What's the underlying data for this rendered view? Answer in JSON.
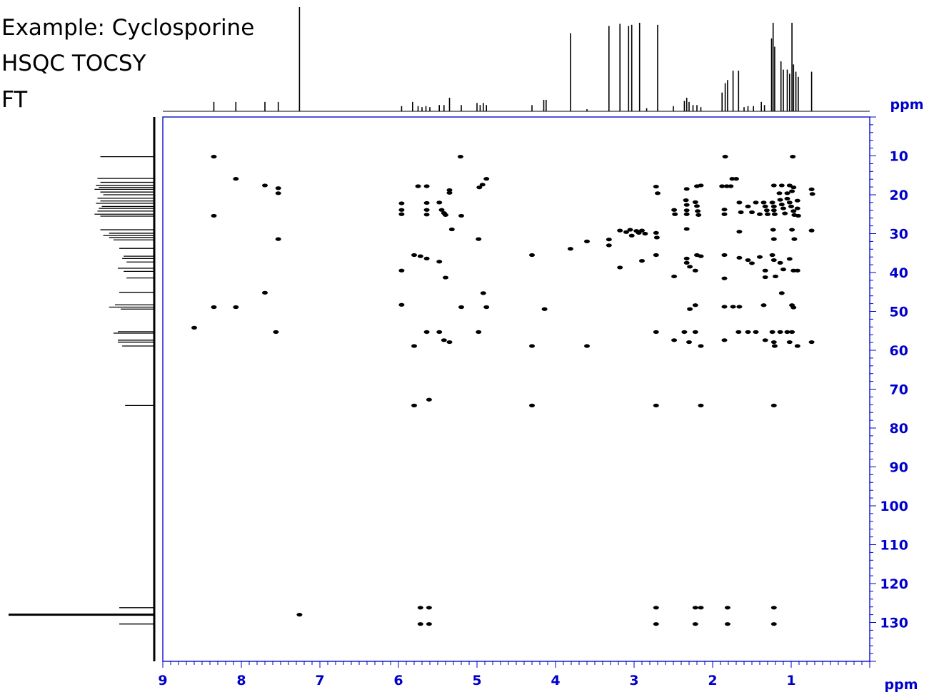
{
  "header": {
    "line1": "Example: Cyclosporine",
    "line2": "HSQC TOCSY",
    "line3": "FT"
  },
  "colors": {
    "axis": "#0000cc",
    "frame": "#1a1acc",
    "data": "#000000"
  },
  "chart_data": {
    "type": "heatmap",
    "title": "",
    "xlabel": "ppm",
    "ylabel": "ppm",
    "xlim": [
      9,
      0
    ],
    "ylim": [
      0,
      140
    ],
    "x_ticks": [
      9,
      8,
      7,
      6,
      5,
      4,
      3,
      2,
      1
    ],
    "y_ticks": [
      10,
      20,
      30,
      40,
      50,
      60,
      70,
      80,
      90,
      100,
      110,
      120,
      130
    ],
    "grid": false,
    "projection_1h": [
      {
        "x": 8.35,
        "h": 0.09
      },
      {
        "x": 8.07,
        "h": 0.09
      },
      {
        "x": 7.7,
        "h": 0.09
      },
      {
        "x": 7.53,
        "h": 0.09
      },
      {
        "x": 7.26,
        "h": 1.0
      },
      {
        "x": 5.96,
        "h": 0.05
      },
      {
        "x": 5.82,
        "h": 0.09
      },
      {
        "x": 5.75,
        "h": 0.05
      },
      {
        "x": 5.7,
        "h": 0.04
      },
      {
        "x": 5.65,
        "h": 0.05
      },
      {
        "x": 5.6,
        "h": 0.04
      },
      {
        "x": 5.48,
        "h": 0.06
      },
      {
        "x": 5.42,
        "h": 0.06
      },
      {
        "x": 5.35,
        "h": 0.13
      },
      {
        "x": 5.2,
        "h": 0.06
      },
      {
        "x": 5.0,
        "h": 0.08
      },
      {
        "x": 4.96,
        "h": 0.06
      },
      {
        "x": 4.92,
        "h": 0.08
      },
      {
        "x": 4.88,
        "h": 0.06
      },
      {
        "x": 4.3,
        "h": 0.06
      },
      {
        "x": 4.15,
        "h": 0.11
      },
      {
        "x": 4.12,
        "h": 0.11
      },
      {
        "x": 3.81,
        "h": 0.75
      },
      {
        "x": 3.6,
        "h": 0.02
      },
      {
        "x": 3.32,
        "h": 0.82
      },
      {
        "x": 3.18,
        "h": 0.84
      },
      {
        "x": 3.07,
        "h": 0.82
      },
      {
        "x": 3.03,
        "h": 0.83
      },
      {
        "x": 2.93,
        "h": 0.85
      },
      {
        "x": 2.7,
        "h": 0.83
      },
      {
        "x": 2.84,
        "h": 0.03
      },
      {
        "x": 2.5,
        "h": 0.05
      },
      {
        "x": 2.36,
        "h": 0.1
      },
      {
        "x": 2.33,
        "h": 0.13
      },
      {
        "x": 2.3,
        "h": 0.09
      },
      {
        "x": 2.25,
        "h": 0.06
      },
      {
        "x": 2.2,
        "h": 0.06
      },
      {
        "x": 2.15,
        "h": 0.04
      },
      {
        "x": 1.88,
        "h": 0.18
      },
      {
        "x": 1.84,
        "h": 0.27
      },
      {
        "x": 1.81,
        "h": 0.3
      },
      {
        "x": 1.74,
        "h": 0.39
      },
      {
        "x": 1.67,
        "h": 0.39
      },
      {
        "x": 1.6,
        "h": 0.04
      },
      {
        "x": 1.55,
        "h": 0.05
      },
      {
        "x": 1.48,
        "h": 0.05
      },
      {
        "x": 1.38,
        "h": 0.09
      },
      {
        "x": 1.34,
        "h": 0.06
      },
      {
        "x": 1.25,
        "h": 0.7
      },
      {
        "x": 1.23,
        "h": 0.85
      },
      {
        "x": 1.21,
        "h": 0.62
      },
      {
        "x": 1.13,
        "h": 0.48
      },
      {
        "x": 1.1,
        "h": 0.4
      },
      {
        "x": 1.05,
        "h": 0.4
      },
      {
        "x": 1.02,
        "h": 0.36
      },
      {
        "x": 0.99,
        "h": 0.85
      },
      {
        "x": 0.97,
        "h": 0.45
      },
      {
        "x": 0.94,
        "h": 0.38
      },
      {
        "x": 0.91,
        "h": 0.33
      },
      {
        "x": 0.74,
        "h": 0.38
      }
    ],
    "projection_13c": [
      {
        "y": 10.2,
        "h": 0.37
      },
      {
        "y": 15.8,
        "h": 0.39
      },
      {
        "y": 16.8,
        "h": 0.37
      },
      {
        "y": 17.6,
        "h": 0.4
      },
      {
        "y": 18.1,
        "h": 0.38
      },
      {
        "y": 18.6,
        "h": 0.41
      },
      {
        "y": 19.3,
        "h": 0.37
      },
      {
        "y": 20.0,
        "h": 0.35
      },
      {
        "y": 20.9,
        "h": 0.39
      },
      {
        "y": 21.6,
        "h": 0.37
      },
      {
        "y": 22.2,
        "h": 0.4
      },
      {
        "y": 23.0,
        "h": 0.36
      },
      {
        "y": 23.5,
        "h": 0.38
      },
      {
        "y": 24.2,
        "h": 0.39
      },
      {
        "y": 25.0,
        "h": 0.41
      },
      {
        "y": 25.5,
        "h": 0.37
      },
      {
        "y": 29.0,
        "h": 0.37
      },
      {
        "y": 29.9,
        "h": 0.31
      },
      {
        "y": 30.5,
        "h": 0.35
      },
      {
        "y": 31.0,
        "h": 0.31
      },
      {
        "y": 31.6,
        "h": 0.28
      },
      {
        "y": 33.8,
        "h": 0.24
      },
      {
        "y": 35.8,
        "h": 0.21
      },
      {
        "y": 36.4,
        "h": 0.22
      },
      {
        "y": 37.3,
        "h": 0.19
      },
      {
        "y": 38.9,
        "h": 0.25
      },
      {
        "y": 39.7,
        "h": 0.21
      },
      {
        "y": 41.4,
        "h": 0.19
      },
      {
        "y": 45.1,
        "h": 0.24
      },
      {
        "y": 48.3,
        "h": 0.27
      },
      {
        "y": 48.9,
        "h": 0.31
      },
      {
        "y": 49.4,
        "h": 0.23
      },
      {
        "y": 55.2,
        "h": 0.25
      },
      {
        "y": 55.6,
        "h": 0.28
      },
      {
        "y": 57.4,
        "h": 0.25
      },
      {
        "y": 57.9,
        "h": 0.25
      },
      {
        "y": 58.9,
        "h": 0.22
      },
      {
        "y": 74.2,
        "h": 0.2
      },
      {
        "y": 126.2,
        "h": 0.24
      },
      {
        "y": 128.0,
        "h": 1.0
      },
      {
        "y": 130.4,
        "h": 0.24
      }
    ],
    "peaks": [
      {
        "x": 8.35,
        "y": 10.2
      },
      {
        "x": 5.21,
        "y": 10.2
      },
      {
        "x": 1.84,
        "y": 10.2
      },
      {
        "x": 0.98,
        "y": 10.2
      },
      {
        "x": 8.07,
        "y": 15.9
      },
      {
        "x": 4.88,
        "y": 15.9
      },
      {
        "x": 4.93,
        "y": 17.4
      },
      {
        "x": 1.75,
        "y": 15.9
      },
      {
        "x": 1.7,
        "y": 15.9
      },
      {
        "x": 7.7,
        "y": 17.6
      },
      {
        "x": 7.53,
        "y": 18.3
      },
      {
        "x": 7.53,
        "y": 19.6
      },
      {
        "x": 5.75,
        "y": 17.8
      },
      {
        "x": 5.64,
        "y": 17.8
      },
      {
        "x": 5.35,
        "y": 18.8
      },
      {
        "x": 5.35,
        "y": 19.5
      },
      {
        "x": 4.97,
        "y": 18.1
      },
      {
        "x": 2.72,
        "y": 17.9
      },
      {
        "x": 2.7,
        "y": 19.6
      },
      {
        "x": 2.33,
        "y": 18.5
      },
      {
        "x": 2.2,
        "y": 17.8
      },
      {
        "x": 2.15,
        "y": 17.6
      },
      {
        "x": 1.88,
        "y": 17.8
      },
      {
        "x": 1.82,
        "y": 17.8
      },
      {
        "x": 1.77,
        "y": 17.8
      },
      {
        "x": 1.22,
        "y": 17.6
      },
      {
        "x": 1.12,
        "y": 17.6
      },
      {
        "x": 1.02,
        "y": 17.6
      },
      {
        "x": 0.97,
        "y": 18.1
      },
      {
        "x": 1.15,
        "y": 19.6
      },
      {
        "x": 1.05,
        "y": 19.6
      },
      {
        "x": 0.99,
        "y": 19.1
      },
      {
        "x": 0.74,
        "y": 18.6
      },
      {
        "x": 0.73,
        "y": 19.8
      },
      {
        "x": 5.96,
        "y": 22.2
      },
      {
        "x": 5.96,
        "y": 23.9
      },
      {
        "x": 5.64,
        "y": 22.1
      },
      {
        "x": 5.64,
        "y": 23.9
      },
      {
        "x": 5.64,
        "y": 25.1
      },
      {
        "x": 5.48,
        "y": 22.0
      },
      {
        "x": 5.45,
        "y": 23.9
      },
      {
        "x": 5.42,
        "y": 24.7
      },
      {
        "x": 5.4,
        "y": 25.2
      },
      {
        "x": 8.35,
        "y": 25.4
      },
      {
        "x": 5.96,
        "y": 25.0
      },
      {
        "x": 5.2,
        "y": 25.4
      },
      {
        "x": 2.49,
        "y": 23.9
      },
      {
        "x": 2.48,
        "y": 25.0
      },
      {
        "x": 2.34,
        "y": 21.4
      },
      {
        "x": 2.33,
        "y": 22.6
      },
      {
        "x": 2.33,
        "y": 24.0
      },
      {
        "x": 2.33,
        "y": 25.0
      },
      {
        "x": 2.22,
        "y": 21.9
      },
      {
        "x": 2.2,
        "y": 22.9
      },
      {
        "x": 2.19,
        "y": 24.2
      },
      {
        "x": 2.18,
        "y": 25.2
      },
      {
        "x": 1.85,
        "y": 23.8
      },
      {
        "x": 1.85,
        "y": 25.0
      },
      {
        "x": 1.66,
        "y": 22.0
      },
      {
        "x": 1.64,
        "y": 24.5
      },
      {
        "x": 1.55,
        "y": 23.0
      },
      {
        "x": 1.5,
        "y": 24.5
      },
      {
        "x": 1.45,
        "y": 22.0
      },
      {
        "x": 1.4,
        "y": 25.0
      },
      {
        "x": 1.35,
        "y": 22.0
      },
      {
        "x": 1.33,
        "y": 23.0
      },
      {
        "x": 1.31,
        "y": 24.0
      },
      {
        "x": 1.3,
        "y": 25.0
      },
      {
        "x": 1.24,
        "y": 22.0
      },
      {
        "x": 1.22,
        "y": 23.0
      },
      {
        "x": 1.22,
        "y": 24.0
      },
      {
        "x": 1.21,
        "y": 25.0
      },
      {
        "x": 1.14,
        "y": 21.3
      },
      {
        "x": 1.12,
        "y": 22.5
      },
      {
        "x": 1.1,
        "y": 23.5
      },
      {
        "x": 1.08,
        "y": 24.8
      },
      {
        "x": 1.05,
        "y": 21.0
      },
      {
        "x": 1.02,
        "y": 22.0
      },
      {
        "x": 1.0,
        "y": 23.0
      },
      {
        "x": 0.97,
        "y": 24.2
      },
      {
        "x": 0.96,
        "y": 25.2
      },
      {
        "x": 0.92,
        "y": 21.5
      },
      {
        "x": 0.92,
        "y": 23.5
      },
      {
        "x": 0.91,
        "y": 25.4
      },
      {
        "x": 5.32,
        "y": 28.9
      },
      {
        "x": 7.53,
        "y": 31.4
      },
      {
        "x": 4.98,
        "y": 31.4
      },
      {
        "x": 3.81,
        "y": 33.9
      },
      {
        "x": 3.6,
        "y": 32.0
      },
      {
        "x": 3.32,
        "y": 31.5
      },
      {
        "x": 3.32,
        "y": 33.0
      },
      {
        "x": 3.18,
        "y": 29.2
      },
      {
        "x": 3.1,
        "y": 29.6
      },
      {
        "x": 3.05,
        "y": 29.0
      },
      {
        "x": 3.03,
        "y": 30.5
      },
      {
        "x": 2.97,
        "y": 29.3
      },
      {
        "x": 2.94,
        "y": 29.8
      },
      {
        "x": 2.9,
        "y": 29.2
      },
      {
        "x": 2.86,
        "y": 30.0
      },
      {
        "x": 2.72,
        "y": 29.8
      },
      {
        "x": 2.71,
        "y": 31.0
      },
      {
        "x": 2.33,
        "y": 28.8
      },
      {
        "x": 1.66,
        "y": 29.5
      },
      {
        "x": 1.23,
        "y": 29.0
      },
      {
        "x": 1.22,
        "y": 31.4
      },
      {
        "x": 0.99,
        "y": 29.0
      },
      {
        "x": 0.96,
        "y": 31.4
      },
      {
        "x": 0.74,
        "y": 29.2
      },
      {
        "x": 5.8,
        "y": 35.5
      },
      {
        "x": 5.72,
        "y": 35.8
      },
      {
        "x": 5.64,
        "y": 36.4
      },
      {
        "x": 5.48,
        "y": 37.2
      },
      {
        "x": 5.4,
        "y": 41.3
      },
      {
        "x": 4.3,
        "y": 35.5
      },
      {
        "x": 3.18,
        "y": 38.7
      },
      {
        "x": 2.9,
        "y": 37.0
      },
      {
        "x": 2.72,
        "y": 35.5
      },
      {
        "x": 2.49,
        "y": 41.0
      },
      {
        "x": 2.33,
        "y": 36.4
      },
      {
        "x": 2.33,
        "y": 37.5
      },
      {
        "x": 2.29,
        "y": 38.5
      },
      {
        "x": 2.22,
        "y": 39.5
      },
      {
        "x": 2.2,
        "y": 35.5
      },
      {
        "x": 2.15,
        "y": 35.8
      },
      {
        "x": 1.85,
        "y": 35.5
      },
      {
        "x": 1.85,
        "y": 41.5
      },
      {
        "x": 1.66,
        "y": 36.2
      },
      {
        "x": 1.55,
        "y": 36.8
      },
      {
        "x": 1.5,
        "y": 37.6
      },
      {
        "x": 1.4,
        "y": 36.0
      },
      {
        "x": 1.33,
        "y": 39.5
      },
      {
        "x": 1.33,
        "y": 41.2
      },
      {
        "x": 1.24,
        "y": 35.5
      },
      {
        "x": 1.22,
        "y": 36.8
      },
      {
        "x": 1.2,
        "y": 41.0
      },
      {
        "x": 1.14,
        "y": 37.5
      },
      {
        "x": 1.1,
        "y": 39.2
      },
      {
        "x": 1.02,
        "y": 36.5
      },
      {
        "x": 0.97,
        "y": 39.5
      },
      {
        "x": 0.92,
        "y": 39.5
      },
      {
        "x": 5.96,
        "y": 39.5
      },
      {
        "x": 7.7,
        "y": 45.2
      },
      {
        "x": 4.92,
        "y": 45.3
      },
      {
        "x": 1.12,
        "y": 45.3
      },
      {
        "x": 8.35,
        "y": 48.9
      },
      {
        "x": 8.07,
        "y": 48.9
      },
      {
        "x": 5.96,
        "y": 48.3
      },
      {
        "x": 5.2,
        "y": 48.9
      },
      {
        "x": 4.88,
        "y": 48.9
      },
      {
        "x": 4.14,
        "y": 49.4
      },
      {
        "x": 2.29,
        "y": 49.4
      },
      {
        "x": 2.22,
        "y": 48.4
      },
      {
        "x": 1.85,
        "y": 48.8
      },
      {
        "x": 1.74,
        "y": 48.8
      },
      {
        "x": 1.66,
        "y": 48.8
      },
      {
        "x": 1.35,
        "y": 48.4
      },
      {
        "x": 0.99,
        "y": 48.4
      },
      {
        "x": 0.97,
        "y": 49.0
      },
      {
        "x": 8.6,
        "y": 54.2
      },
      {
        "x": 7.56,
        "y": 55.3
      },
      {
        "x": 5.64,
        "y": 55.3
      },
      {
        "x": 5.48,
        "y": 55.3
      },
      {
        "x": 5.42,
        "y": 57.4
      },
      {
        "x": 5.35,
        "y": 57.9
      },
      {
        "x": 4.98,
        "y": 55.3
      },
      {
        "x": 5.8,
        "y": 58.9
      },
      {
        "x": 4.3,
        "y": 58.9
      },
      {
        "x": 3.6,
        "y": 58.9
      },
      {
        "x": 2.72,
        "y": 55.3
      },
      {
        "x": 2.49,
        "y": 57.4
      },
      {
        "x": 2.36,
        "y": 55.3
      },
      {
        "x": 2.3,
        "y": 57.9
      },
      {
        "x": 2.22,
        "y": 55.3
      },
      {
        "x": 2.15,
        "y": 58.9
      },
      {
        "x": 1.85,
        "y": 57.4
      },
      {
        "x": 1.67,
        "y": 55.3
      },
      {
        "x": 1.55,
        "y": 55.3
      },
      {
        "x": 1.45,
        "y": 55.3
      },
      {
        "x": 1.33,
        "y": 57.4
      },
      {
        "x": 1.24,
        "y": 55.3
      },
      {
        "x": 1.22,
        "y": 57.9
      },
      {
        "x": 1.21,
        "y": 58.9
      },
      {
        "x": 1.14,
        "y": 55.3
      },
      {
        "x": 1.05,
        "y": 55.3
      },
      {
        "x": 0.99,
        "y": 55.3
      },
      {
        "x": 1.02,
        "y": 57.9
      },
      {
        "x": 0.92,
        "y": 58.9
      },
      {
        "x": 0.74,
        "y": 57.9
      },
      {
        "x": 5.8,
        "y": 74.2
      },
      {
        "x": 5.61,
        "y": 72.7
      },
      {
        "x": 4.3,
        "y": 74.2
      },
      {
        "x": 2.72,
        "y": 74.2
      },
      {
        "x": 2.15,
        "y": 74.2
      },
      {
        "x": 1.22,
        "y": 74.2
      },
      {
        "x": 7.26,
        "y": 128.0
      },
      {
        "x": 5.72,
        "y": 126.2
      },
      {
        "x": 5.61,
        "y": 126.2
      },
      {
        "x": 5.72,
        "y": 130.4
      },
      {
        "x": 5.61,
        "y": 130.4
      },
      {
        "x": 2.72,
        "y": 126.2
      },
      {
        "x": 2.72,
        "y": 130.4
      },
      {
        "x": 2.22,
        "y": 126.2
      },
      {
        "x": 2.15,
        "y": 126.2
      },
      {
        "x": 2.22,
        "y": 130.4
      },
      {
        "x": 1.81,
        "y": 126.2
      },
      {
        "x": 1.81,
        "y": 130.4
      },
      {
        "x": 1.22,
        "y": 126.2
      },
      {
        "x": 1.22,
        "y": 130.4
      }
    ]
  }
}
